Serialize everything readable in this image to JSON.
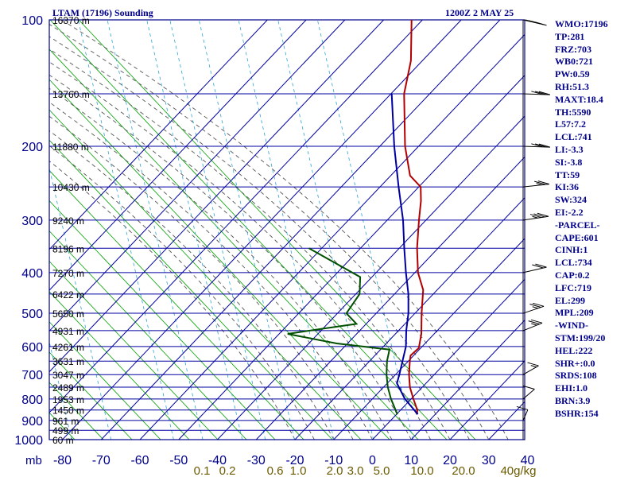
{
  "title_left": "LTAM (17196) Sounding",
  "title_right": "1200Z  2 MAY 25",
  "colors": {
    "frame": "#00008b",
    "grid": "#0000a0",
    "dry_adiabat": "#00a000",
    "moist_adiabat": "#555555",
    "mixing_ratio": "#2fa3d6",
    "temperature": "#b00000",
    "dewpoint": "#005000",
    "parcel": "#0000a0",
    "label_mr": "#6b5a00",
    "wind": "#000000"
  },
  "indices": [
    "WMO:17196",
    "TP:281",
    "FRZ:703",
    "WB0:721",
    "PW:0.59",
    "RH:51.3",
    "MAXT:18.4",
    "TH:5590",
    "L57:7.2",
    "LCL:741",
    "LI:-3.3",
    "SI:-3.8",
    "TT:59",
    "KI:36",
    "SW:324",
    "EI:-2.2",
    "-PARCEL-",
    "CAPE:601",
    "CINH:1",
    "LCL:734",
    "CAP:0.2",
    "LFC:719",
    "EL:299",
    "MPL:209",
    "-WIND-",
    "STM:199/20",
    "HEL:222",
    "SHR+:0.0",
    "SRDS:108",
    "EHI:1.0",
    "BRN:3.9",
    "BSHR:154"
  ],
  "chart_data": {
    "type": "line",
    "chart_kind": "skew-T log-P sounding",
    "x_unit_label": "mb",
    "x_ticks": [
      -80,
      -70,
      -60,
      -50,
      -40,
      -30,
      -20,
      -10,
      0,
      10,
      20,
      30,
      40
    ],
    "x_tick_labels": [
      "-80",
      "-70",
      "-60",
      "-50",
      "-40",
      "-30",
      "-20",
      "-10",
      "0",
      "10",
      "20",
      "30",
      "40"
    ],
    "y_scale": "log",
    "y_ticks": [
      100,
      200,
      300,
      400,
      500,
      600,
      700,
      800,
      900,
      1000
    ],
    "y_tick_labels": [
      "100",
      "200",
      "300",
      "400",
      "500",
      "600",
      "700",
      "800",
      "900",
      "1000"
    ],
    "height_labels": [
      {
        "p": 100,
        "label": "16370 m"
      },
      {
        "p": 150,
        "label": "13760 m"
      },
      {
        "p": 200,
        "label": "11880 m"
      },
      {
        "p": 250,
        "label": "10430 m"
      },
      {
        "p": 300,
        "label": "9240 m"
      },
      {
        "p": 350,
        "label": "8196 m"
      },
      {
        "p": 400,
        "label": "7270 m"
      },
      {
        "p": 450,
        "label": "6422 m"
      },
      {
        "p": 500,
        "label": "5650 m"
      },
      {
        "p": 550,
        "label": "4931 m"
      },
      {
        "p": 600,
        "label": "4261 m"
      },
      {
        "p": 650,
        "label": "3631 m"
      },
      {
        "p": 700,
        "label": "3047 m"
      },
      {
        "p": 750,
        "label": "2489 m"
      },
      {
        "p": 800,
        "label": "1953 m"
      },
      {
        "p": 850,
        "label": "1450 m"
      },
      {
        "p": 900,
        "label": "961 m"
      },
      {
        "p": 950,
        "label": "499 m"
      },
      {
        "p": 1000,
        "label": "60 m"
      }
    ],
    "mixing_ratio_labels": [
      {
        "value": 0.1,
        "label": "0.1"
      },
      {
        "value": 0.2,
        "label": "0.2"
      },
      {
        "value": 0.6,
        "label": "0.6"
      },
      {
        "value": 1.0,
        "label": "1.0"
      },
      {
        "value": 2.0,
        "label": "2.0"
      },
      {
        "value": 3.0,
        "label": "3.0"
      },
      {
        "value": 5.0,
        "label": "5.0"
      },
      {
        "value": 10.0,
        "label": "10.0"
      },
      {
        "value": 20.0,
        "label": "20.0"
      },
      {
        "value": 40.0,
        "label": "40g/kg"
      }
    ],
    "series": [
      {
        "key": "temperature",
        "points": [
          {
            "p": 870,
            "t": 5.3
          },
          {
            "p": 850,
            "t": 4.3
          },
          {
            "p": 800,
            "t": 0.6
          },
          {
            "p": 750,
            "t": -3.2
          },
          {
            "p": 700,
            "t": -6.5
          },
          {
            "p": 650,
            "t": -9.6
          },
          {
            "p": 630,
            "t": -10.8
          },
          {
            "p": 605,
            "t": -10.5
          },
          {
            "p": 560,
            "t": -13.3
          },
          {
            "p": 500,
            "t": -18.3
          },
          {
            "p": 440,
            "t": -23.6
          },
          {
            "p": 400,
            "t": -29.2
          },
          {
            "p": 350,
            "t": -35.4
          },
          {
            "p": 300,
            "t": -41.8
          },
          {
            "p": 270,
            "t": -46.0
          },
          {
            "p": 250,
            "t": -49.5
          },
          {
            "p": 235,
            "t": -55.0
          },
          {
            "p": 200,
            "t": -63.5
          },
          {
            "p": 150,
            "t": -76.6
          },
          {
            "p": 125,
            "t": -83.0
          },
          {
            "p": 100,
            "t": -92.8
          }
        ]
      },
      {
        "key": "dewpoint",
        "points": [
          {
            "p": 870,
            "t": 0.2
          },
          {
            "p": 850,
            "t": -1.3
          },
          {
            "p": 800,
            "t": -5.2
          },
          {
            "p": 750,
            "t": -8.9
          },
          {
            "p": 700,
            "t": -12.3
          },
          {
            "p": 650,
            "t": -15.5
          },
          {
            "p": 610,
            "t": -17.7
          },
          {
            "p": 590,
            "t": -32.8
          },
          {
            "p": 560,
            "t": -47.8
          },
          {
            "p": 545,
            "t": -40.4
          },
          {
            "p": 530,
            "t": -32.5
          },
          {
            "p": 500,
            "t": -37.7
          },
          {
            "p": 450,
            "t": -39.0
          },
          {
            "p": 410,
            "t": -43.0
          },
          {
            "p": 350,
            "t": -63.3
          }
        ]
      },
      {
        "key": "parcel",
        "points": [
          {
            "p": 870,
            "t": 5.5
          },
          {
            "p": 800,
            "t": -1.6
          },
          {
            "p": 734,
            "t": -7.5
          },
          {
            "p": 700,
            "t": -9.0
          },
          {
            "p": 650,
            "t": -11.5
          },
          {
            "p": 600,
            "t": -14.2
          },
          {
            "p": 550,
            "t": -18.0
          },
          {
            "p": 500,
            "t": -21.7
          },
          {
            "p": 450,
            "t": -26.4
          },
          {
            "p": 400,
            "t": -32.3
          },
          {
            "p": 350,
            "t": -38.7
          },
          {
            "p": 300,
            "t": -45.9
          },
          {
            "p": 250,
            "t": -55.2
          },
          {
            "p": 200,
            "t": -66.3
          },
          {
            "p": 150,
            "t": -79.8
          }
        ]
      }
    ],
    "wind_barbs": [
      {
        "p": 100,
        "dir": 300,
        "speed": 40
      },
      {
        "p": 150,
        "dir": 275,
        "speed": 30
      },
      {
        "p": 200,
        "dir": 275,
        "speed": 30
      },
      {
        "p": 250,
        "dir": 255,
        "speed": 25
      },
      {
        "p": 300,
        "dir": 250,
        "speed": 35
      },
      {
        "p": 400,
        "dir": 240,
        "speed": 20
      },
      {
        "p": 500,
        "dir": 230,
        "speed": 25
      },
      {
        "p": 550,
        "dir": 225,
        "speed": 25
      },
      {
        "p": 700,
        "dir": 215,
        "speed": 15
      },
      {
        "p": 800,
        "dir": 205,
        "speed": 10
      },
      {
        "p": 900,
        "dir": 190,
        "speed": 10
      }
    ],
    "legend": "none",
    "grid": true
  }
}
